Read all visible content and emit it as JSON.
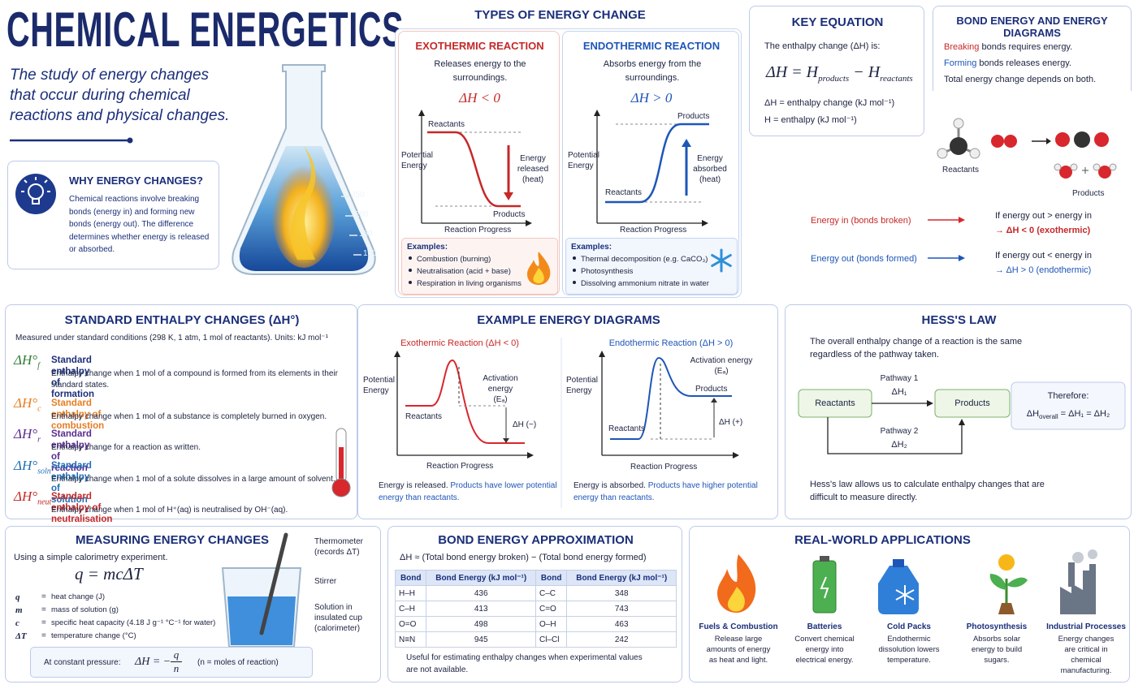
{
  "header": {
    "title": "CHEMICAL ENERGETICS",
    "subtitle": "The study of energy changes that occur during chemical reactions and physical changes."
  },
  "flask": {
    "graduations": [
      "250",
      "200",
      "150",
      "100"
    ]
  },
  "why": {
    "title": "WHY ENERGY CHANGES?",
    "text": "Chemical reactions involve breaking bonds (energy in) and forming new bonds (energy out). The difference determines whether energy is released or absorbed."
  },
  "types": {
    "title": "TYPES OF ENERGY CHANGE",
    "exo": {
      "title": "EXOTHERMIC REACTION",
      "desc": "Releases energy to the surroundings.",
      "sign": "ΔH < 0",
      "y_label": "Potential Energy",
      "x_label": "Reaction Progress",
      "reactants": "Reactants",
      "products": "Products",
      "arrow": "Energy released (heat)",
      "examples_title": "Examples:",
      "examples": [
        "Combustion (burning)",
        "Neutralisation (acid + base)",
        "Respiration in living organisms"
      ]
    },
    "endo": {
      "title": "ENDOTHERMIC REACTION",
      "desc": "Absorbs energy from the surroundings.",
      "sign": "ΔH > 0",
      "y_label": "Potential Energy",
      "x_label": "Reaction Progress",
      "reactants": "Reactants",
      "products": "Products",
      "arrow": "Energy absorbed (heat)",
      "examples_title": "Examples:",
      "examples": [
        "Thermal decomposition (e.g. CaCO₃)",
        "Photosynthesis",
        "Dissolving ammonium nitrate in water"
      ]
    }
  },
  "key_equation": {
    "title": "KEY EQUATION",
    "intro": "The enthalpy change (ΔH) is:",
    "eq_a": "ΔH = H",
    "eq_b": "products",
    "eq_c": " − H",
    "eq_d": "reactants",
    "defs": [
      "ΔH = enthalpy change (kJ mol⁻¹)",
      "H = enthalpy (kJ mol⁻¹)"
    ]
  },
  "bond_diagrams": {
    "title": "BOND ENERGY AND ENERGY DIAGRAMS",
    "breaking": "Breaking",
    "breaking_rest": " bonds requires energy.",
    "forming": "Forming",
    "forming_rest": " bonds releases energy.",
    "total": "Total energy change depends on both.",
    "reactants": "Reactants",
    "products": "Products",
    "energy_in": "Energy in (bonds broken)",
    "energy_out": "Energy out (bonds formed)",
    "rule_exo": [
      "If energy out > energy in",
      "→ ΔH < 0 (exothermic)"
    ],
    "rule_endo": [
      "If energy out < energy in",
      "→ ΔH > 0 (endothermic)"
    ]
  },
  "standard": {
    "title": "STANDARD ENTHALPY CHANGES (ΔH°)",
    "conditions": "Measured under standard conditions (298 K, 1 atm, 1 mol of reactants). Units: kJ mol⁻¹",
    "items": [
      {
        "symbol": "ΔH°",
        "sub": "f",
        "name": "Standard enthalpy of formation",
        "desc": "Enthalpy change when 1 mol of a compound is formed from its elements in their standard states."
      },
      {
        "symbol": "ΔH°",
        "sub": "c",
        "name": "Standard enthalpy of combustion",
        "desc": "Enthalpy change when 1 mol of a substance is completely burned in oxygen."
      },
      {
        "symbol": "ΔH°",
        "sub": "r",
        "name": "Standard enthalpy of reaction",
        "desc": "Enthalpy change for a reaction as written."
      },
      {
        "symbol": "ΔH°",
        "sub": "soln",
        "name": "Standard enthalpy of solution",
        "desc": "Enthalpy change when 1 mol of a solute dissolves in a large amount of solvent."
      },
      {
        "symbol": "ΔH°",
        "sub": "neut",
        "name": "Standard enthalpy of neutralisation",
        "desc": "Enthalpy change when 1 mol of H⁺(aq) is neutralised by OH⁻(aq)."
      }
    ]
  },
  "example_diagrams": {
    "title": "EXAMPLE ENERGY DIAGRAMS",
    "exo": {
      "title": "Exothermic Reaction (ΔH < 0)",
      "y_label": "Potential Energy",
      "x_label": "Reaction Progress",
      "activation": "Activation energy",
      "ea": "(Eₐ)",
      "reactants": "Reactants",
      "dh": "ΔH (−)",
      "note_a": "Energy is released.",
      "note_b": " Products have lower potential energy than reactants."
    },
    "endo": {
      "title": "Endothermic Reaction (ΔH > 0)",
      "y_label": "Potential Energy",
      "x_label": "Reaction Progress",
      "activation": "Activation energy",
      "ea": "(Eₐ)",
      "reactants": "Reactants",
      "products": "Products",
      "dh": "ΔH (+)",
      "note_a": "Energy is absorbed.",
      "note_b": " Products have higher potential energy than reactants."
    }
  },
  "hess": {
    "title": "HESS'S LAW",
    "intro": "The overall enthalpy change of a reaction is the same regardless of the pathway taken.",
    "reactants": "Reactants",
    "products": "Products",
    "pathway1": "Pathway 1",
    "dh1": "ΔH₁",
    "pathway2": "Pathway 2",
    "dh2": "ΔH₂",
    "therefore": "Therefore:",
    "eq_a": "ΔH",
    "eq_b": "overall",
    "eq_c": " = ΔH₁ = ΔH₂",
    "note": "Hess's law allows us to calculate enthalpy changes that are difficult to measure directly."
  },
  "measuring": {
    "title": "MEASURING ENERGY CHANGES",
    "intro": "Using a simple calorimetry experiment.",
    "equation": "q = mcΔT",
    "vars": [
      {
        "sym": "q",
        "def": "heat change (J)"
      },
      {
        "sym": "m",
        "def": "mass of solution (g)"
      },
      {
        "sym": "c",
        "def": "specific heat capacity (4.18 J g⁻¹ °C⁻¹ for water)"
      },
      {
        "sym": "ΔT",
        "def": "temperature change (°C)"
      }
    ],
    "eq_sign": "=",
    "labels": [
      "Thermometer (records ΔT)",
      "Stirrer",
      "Solution in insulated cup (calorimeter)"
    ],
    "constant_label": "At constant pressure:",
    "constant_left": "ΔH = −",
    "constant_num": "q",
    "constant_den": "n",
    "constant_note": "(n = moles of reaction)"
  },
  "bond_approx": {
    "title": "BOND ENERGY APPROXIMATION",
    "formula": "ΔH ≈ (Total bond energy broken) − (Total bond energy formed)",
    "table": {
      "header": [
        "Bond",
        "Bond Energy (kJ mol⁻¹)",
        "Bond",
        "Bond Energy (kJ mol⁻¹)"
      ],
      "rows": [
        [
          "H–H",
          "436",
          "C–C",
          "348"
        ],
        [
          "C–H",
          "413",
          "C=O",
          "743"
        ],
        [
          "O=O",
          "498",
          "O–H",
          "463"
        ],
        [
          "N≡N",
          "945",
          "Cl–Cl",
          "242"
        ]
      ]
    },
    "note": "Useful for estimating enthalpy changes when experimental values are not available."
  },
  "applications": {
    "title": "REAL-WORLD APPLICATIONS",
    "items": [
      {
        "name": "Fuels & Combustion",
        "desc": "Release large amounts of energy as heat and light."
      },
      {
        "name": "Batteries",
        "desc": "Convert chemical energy into electrical energy."
      },
      {
        "name": "Cold Packs",
        "desc": "Endothermic dissolution lowers temperature."
      },
      {
        "name": "Photosynthesis",
        "desc": "Absorbs solar energy to build sugars."
      },
      {
        "name": "Industrial Processes",
        "desc": "Energy changes are critical in chemical manufacturing."
      }
    ]
  }
}
